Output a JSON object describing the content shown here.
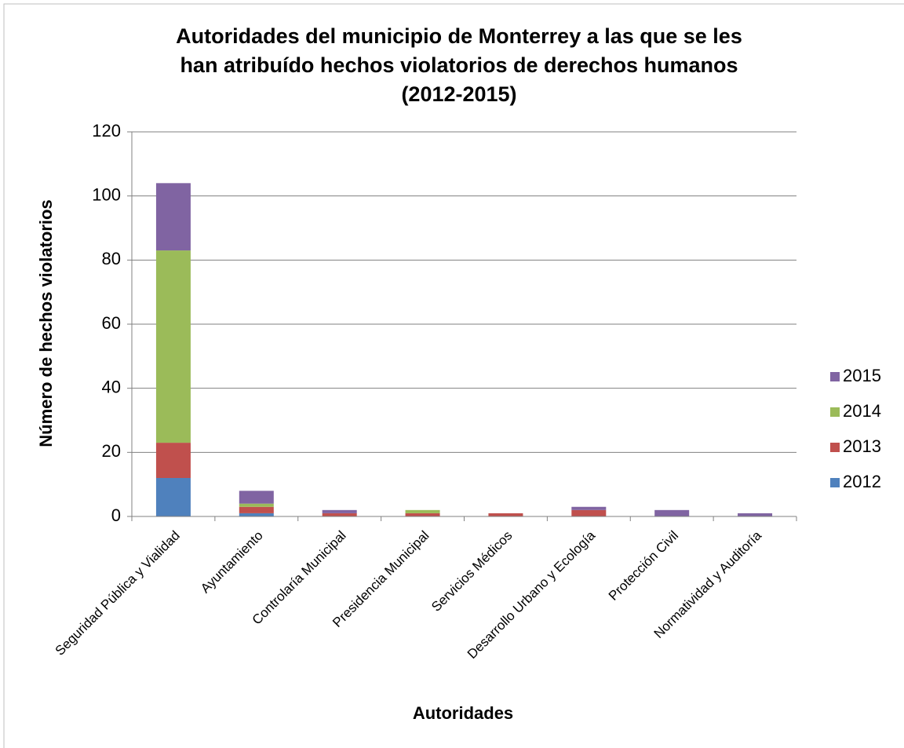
{
  "chart_data": {
    "type": "stacked_bar",
    "title": [
      "Autoridades del municipio de Monterrey a las que se les",
      "han atribuído hechos violatorios de derechos humanos",
      "(2012-2015)"
    ],
    "x_label": "Autoridades",
    "y_label": "Número de hechos violatorios",
    "categories": [
      "Seguridad Pública y Vialidad",
      "Ayuntamiento",
      "Controlaría Municipal",
      "Presidencia Municipal",
      "Servicios Médicos",
      "Desarrollo Urbano y Ecología",
      "Protección Civil",
      "Normatividad y Auditoría"
    ],
    "series": [
      {
        "name": "2012",
        "color": "#4f81bd",
        "values": [
          12,
          1,
          0,
          0,
          0,
          0,
          0,
          0
        ]
      },
      {
        "name": "2013",
        "color": "#c0504d",
        "values": [
          11,
          2,
          1,
          1,
          1,
          2,
          0,
          0
        ]
      },
      {
        "name": "2014",
        "color": "#9bbb59",
        "values": [
          60,
          1,
          0,
          1,
          0,
          0,
          0,
          0
        ]
      },
      {
        "name": "2015",
        "color": "#8064a2",
        "values": [
          21,
          4,
          1,
          0,
          0,
          1,
          2,
          1
        ]
      }
    ],
    "ylim": [
      0,
      120
    ],
    "yticks": [
      0,
      20,
      40,
      60,
      80,
      100,
      120
    ],
    "grid": true,
    "legend": "right"
  }
}
